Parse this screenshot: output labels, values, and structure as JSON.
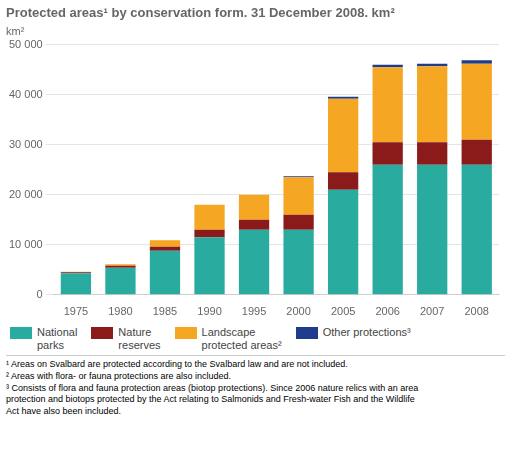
{
  "chart_data": {
    "type": "bar",
    "stacked": true,
    "title": "Protected areas¹ by conservation form. 31 December 2008. km²",
    "ylabel": "km²",
    "categories": [
      "1975",
      "1980",
      "1985",
      "1990",
      "1995",
      "2000",
      "2005",
      "2006",
      "2007",
      "2008"
    ],
    "series": [
      {
        "name": "National\nparks",
        "color": "#2AABA0",
        "values": [
          4300,
          5400,
          8800,
          11500,
          13000,
          13000,
          21000,
          26000,
          26000,
          26000
        ]
      },
      {
        "name": "Nature\nreserves",
        "color": "#8B1A1A",
        "values": [
          200,
          400,
          800,
          1500,
          2000,
          3000,
          3500,
          4500,
          4500,
          5000
        ]
      },
      {
        "name": "Landscape\nprotected areas²",
        "color": "#F5A623",
        "values": [
          100,
          300,
          1300,
          5000,
          5000,
          7500,
          14700,
          15000,
          15200,
          15200
        ]
      },
      {
        "name": "Other protections³",
        "color": "#1F3B8C",
        "values": [
          0,
          0,
          0,
          0,
          0,
          200,
          400,
          500,
          500,
          700
        ]
      }
    ],
    "ylim": [
      0,
      50000
    ],
    "yticks": [
      0,
      {
        "value": 10000,
        "label": "10 000"
      },
      {
        "value": 20000,
        "label": "20 000"
      },
      {
        "value": 30000,
        "label": "30 000"
      },
      {
        "value": 40000,
        "label": "40 000"
      },
      {
        "value": 50000,
        "label": "50 000"
      }
    ],
    "grid": true,
    "legend": "bottom",
    "annotations": [
      "¹ Areas on Svalbard are protected according to the Svalbard law and are not included.\n² Areas with flora- or fauna protections are also included.\n³ Consists of flora and fauna protection areas (biotop protections). Since 2006 nature relics with an area\nprotection and biotops protected by the Act relating to Salmonids and Fresh-water Fish and the Wildlife\nAct have also been included."
    ]
  }
}
